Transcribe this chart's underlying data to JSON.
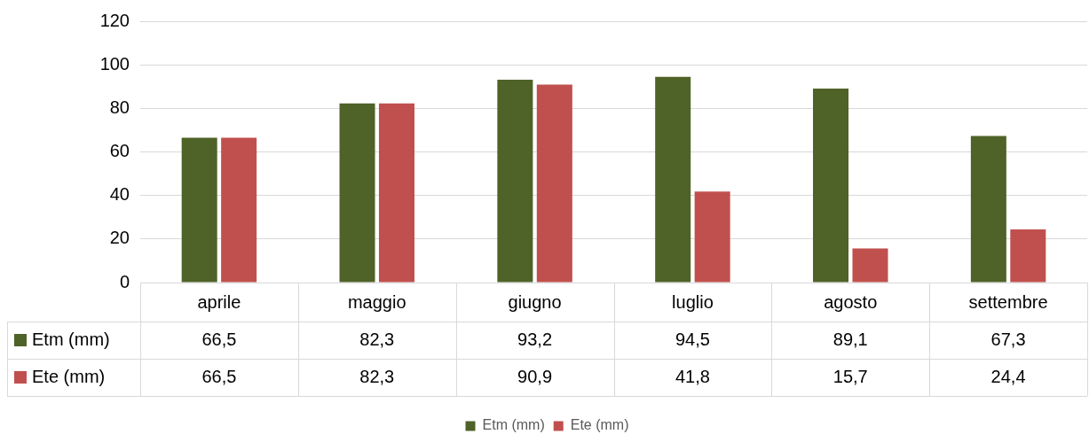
{
  "chart_data": {
    "type": "bar",
    "categories": [
      "aprile",
      "maggio",
      "giugno",
      "luglio",
      "agosto",
      "settembre"
    ],
    "series": [
      {
        "name": "Etm (mm)",
        "color": "#4f6228",
        "values": [
          66.5,
          82.3,
          93.2,
          94.5,
          89.1,
          67.3
        ],
        "value_labels": [
          "66,5",
          "82,3",
          "93,2",
          "94,5",
          "89,1",
          "67,3"
        ]
      },
      {
        "name": "Ete (mm)",
        "color": "#c0504d",
        "values": [
          66.5,
          82.3,
          90.9,
          41.8,
          15.7,
          24.4
        ],
        "value_labels": [
          "66,5",
          "82,3",
          "90,9",
          "41,8",
          "15,7",
          "24,4"
        ]
      }
    ],
    "ylim": [
      0,
      120
    ],
    "yticks": [
      0,
      20,
      40,
      60,
      80,
      100,
      120
    ],
    "grid": "y",
    "legend": "bottom"
  }
}
